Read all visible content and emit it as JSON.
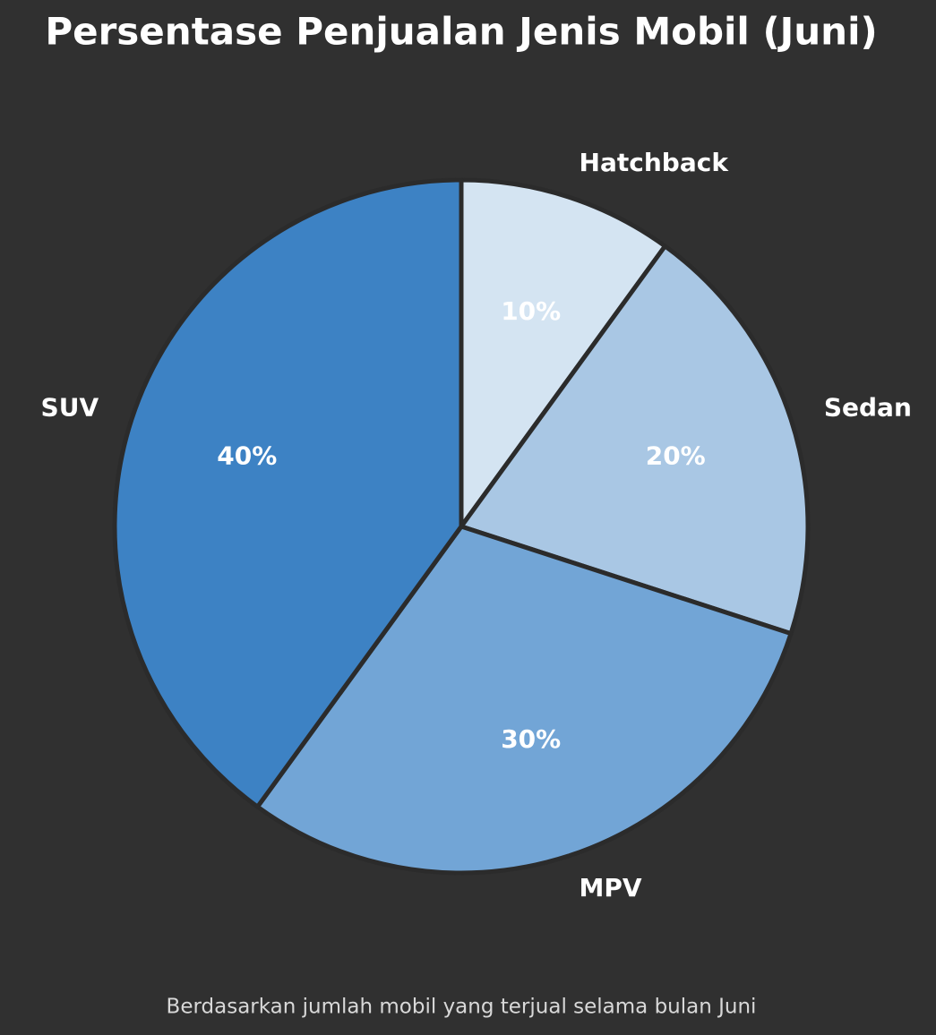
{
  "chart_data": {
    "type": "pie",
    "title": "Persentase Penjualan Jenis Mobil (Juni)",
    "subtitle": "Berdasarkan jumlah mobil yang terjual selama bulan Juni",
    "categories": [
      "Hatchback",
      "Sedan",
      "MPV",
      "SUV"
    ],
    "values": [
      10,
      20,
      30,
      40
    ],
    "value_labels": [
      "10%",
      "20%",
      "30%",
      "40%"
    ],
    "colors": [
      "#d4e4f2",
      "#a9c7e4",
      "#72a5d6",
      "#3d82c4"
    ]
  }
}
